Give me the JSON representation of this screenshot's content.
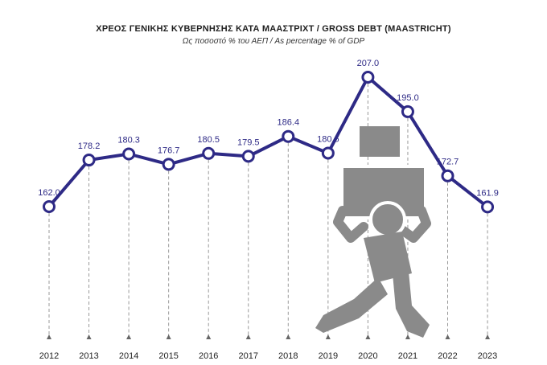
{
  "header": {
    "title": "ΧΡΕΟΣ ΓΕΝΙΚΗΣ ΚΥΒΕΡΝΗΣΗΣ ΚΑΤΑ ΜΑΑΣΤΡΙΧΤ / GROSS DEBT (MAASTRICHT)",
    "subtitle": "Ως ποσοστό % του ΑΕΠ / As percentage % of GDP"
  },
  "colors": {
    "line": "#2e2a86",
    "marker_fill": "#ffffff",
    "figure": "#8a8a8a",
    "dropline": "#999999"
  },
  "illustration": {
    "icon": "person-carrying-boxes-icon"
  },
  "chart_data": {
    "type": "line",
    "title": "ΧΡΕΟΣ ΓΕΝΙΚΗΣ ΚΥΒΕΡΝΗΣΗΣ ΚΑΤΑ ΜΑΑΣΤΡΙΧΤ / GROSS DEBT (MAASTRICHT)",
    "subtitle": "Ως ποσοστό % του ΑΕΠ / As percentage % of GDP",
    "categories": [
      "2012",
      "2013",
      "2014",
      "2015",
      "2016",
      "2017",
      "2018",
      "2019",
      "2020",
      "2021",
      "2022",
      "2023"
    ],
    "values": [
      162.0,
      178.2,
      180.3,
      176.7,
      180.5,
      179.5,
      186.4,
      180.6,
      207.0,
      195.0,
      172.7,
      161.9
    ],
    "labels": [
      "162.0",
      "178.2",
      "180.3",
      "176.7",
      "180.5",
      "179.5",
      "186.4",
      "180.6",
      "207.0",
      "195.0",
      "172.7",
      "161.9"
    ],
    "grid": false,
    "legend": "none"
  }
}
